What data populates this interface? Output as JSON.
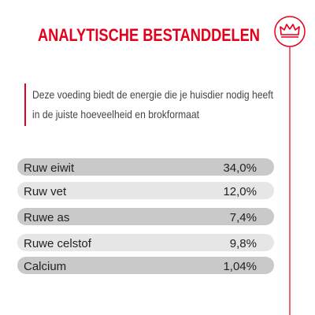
{
  "header": {
    "title": "ANALYTISCHE BESTANDDELEN"
  },
  "intro": [
    "Deze voeding biedt de energie die je huisdier nodig heeft",
    "in de juiste hoeveelheid en brokformaat"
  ],
  "table": {
    "rows": [
      [
        "Ruw eiwit",
        "34,0%"
      ],
      [
        "Ruw vet",
        "12,0%"
      ],
      [
        "Ruwe as",
        "7,4%"
      ],
      [
        "Ruwe celstof",
        "9,8%"
      ],
      [
        "Calcium",
        "1,04%"
      ]
    ]
  }
}
